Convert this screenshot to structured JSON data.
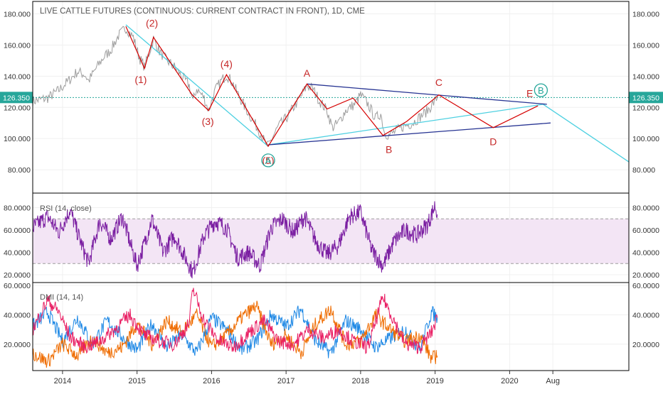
{
  "title": "LIVE CATTLE FUTURES (CONTINUOUS: CURRENT CONTRACT IN FRONT), 1D, CME",
  "current_price": {
    "label": "126.350",
    "value": 126.35,
    "color": "#26a69a"
  },
  "colors": {
    "price": "#9e9e9e",
    "wave": "#d50000",
    "trend_lines": "#283593",
    "projection": "#4dd0e1",
    "rsi": "#7b1fa2",
    "rsi_band": "#f3e5f5",
    "dmi_plus": "#1e88e5",
    "dmi_minus": "#ef6c00",
    "adx": "#e91e63",
    "wave_label": "#c62828",
    "circle_label": "#26a69a"
  },
  "x_axis": {
    "ticks": [
      {
        "label": "2014",
        "value": 2014.0
      },
      {
        "label": "2015",
        "value": 2015.0
      },
      {
        "label": "2016",
        "value": 2016.0
      },
      {
        "label": "2017",
        "value": 2017.0
      },
      {
        "label": "2018",
        "value": 2018.0
      },
      {
        "label": "2019",
        "value": 2019.0
      },
      {
        "label": "2020",
        "value": 2020.0
      },
      {
        "label": "Aug",
        "value": 2020.58
      }
    ],
    "range": [
      2013.6,
      2021.6
    ]
  },
  "panels": {
    "price": {
      "ylim": [
        65,
        188
      ],
      "ticks": [
        {
          "label": "80.000",
          "value": 80
        },
        {
          "label": "100.000",
          "value": 100
        },
        {
          "label": "120.000",
          "value": 120
        },
        {
          "label": "140.000",
          "value": 140
        },
        {
          "label": "160.000",
          "value": 160
        },
        {
          "label": "180.000",
          "value": 180
        }
      ]
    },
    "rsi": {
      "name": "RSI (14, close)",
      "ylim": [
        13,
        93
      ],
      "band": [
        30,
        70
      ],
      "ticks": [
        {
          "label": "20.0000",
          "value": 20
        },
        {
          "label": "40.0000",
          "value": 40
        },
        {
          "label": "60.0000",
          "value": 60
        },
        {
          "label": "80.0000",
          "value": 80
        }
      ]
    },
    "dmi": {
      "name": "DMI (14, 14)",
      "ylim": [
        2,
        62
      ],
      "ticks": [
        {
          "label": "20.0000",
          "value": 20
        },
        {
          "label": "40.0000",
          "value": 40
        },
        {
          "label": "60.0000",
          "value": 60
        }
      ]
    }
  },
  "chart_data": {
    "type": "line",
    "price_path": [
      {
        "x": 2013.6,
        "y": 124
      },
      {
        "x": 2013.8,
        "y": 126
      },
      {
        "x": 2013.95,
        "y": 131
      },
      {
        "x": 2014.1,
        "y": 138
      },
      {
        "x": 2014.2,
        "y": 143
      },
      {
        "x": 2014.3,
        "y": 141
      },
      {
        "x": 2014.35,
        "y": 137
      },
      {
        "x": 2014.45,
        "y": 145
      },
      {
        "x": 2014.55,
        "y": 152
      },
      {
        "x": 2014.65,
        "y": 157
      },
      {
        "x": 2014.75,
        "y": 166
      },
      {
        "x": 2014.85,
        "y": 171
      },
      {
        "x": 2014.95,
        "y": 165
      },
      {
        "x": 2015.03,
        "y": 152
      },
      {
        "x": 2015.1,
        "y": 146
      },
      {
        "x": 2015.17,
        "y": 156
      },
      {
        "x": 2015.22,
        "y": 164
      },
      {
        "x": 2015.3,
        "y": 156
      },
      {
        "x": 2015.4,
        "y": 150
      },
      {
        "x": 2015.5,
        "y": 146
      },
      {
        "x": 2015.6,
        "y": 140
      },
      {
        "x": 2015.7,
        "y": 134
      },
      {
        "x": 2015.75,
        "y": 124
      },
      {
        "x": 2015.8,
        "y": 132
      },
      {
        "x": 2015.9,
        "y": 126
      },
      {
        "x": 2015.96,
        "y": 118
      },
      {
        "x": 2016.05,
        "y": 131
      },
      {
        "x": 2016.13,
        "y": 137
      },
      {
        "x": 2016.2,
        "y": 141
      },
      {
        "x": 2016.28,
        "y": 136
      },
      {
        "x": 2016.36,
        "y": 128
      },
      {
        "x": 2016.45,
        "y": 120
      },
      {
        "x": 2016.55,
        "y": 112
      },
      {
        "x": 2016.65,
        "y": 104
      },
      {
        "x": 2016.72,
        "y": 97
      },
      {
        "x": 2016.76,
        "y": 95
      },
      {
        "x": 2016.82,
        "y": 101
      },
      {
        "x": 2016.9,
        "y": 108
      },
      {
        "x": 2017.0,
        "y": 113
      },
      {
        "x": 2017.1,
        "y": 120
      },
      {
        "x": 2017.2,
        "y": 127
      },
      {
        "x": 2017.28,
        "y": 134
      },
      {
        "x": 2017.36,
        "y": 132
      },
      {
        "x": 2017.45,
        "y": 124
      },
      {
        "x": 2017.55,
        "y": 118
      },
      {
        "x": 2017.62,
        "y": 107
      },
      {
        "x": 2017.7,
        "y": 110
      },
      {
        "x": 2017.8,
        "y": 118
      },
      {
        "x": 2017.92,
        "y": 122
      },
      {
        "x": 2018.0,
        "y": 128
      },
      {
        "x": 2018.1,
        "y": 122
      },
      {
        "x": 2018.2,
        "y": 113
      },
      {
        "x": 2018.27,
        "y": 116
      },
      {
        "x": 2018.32,
        "y": 104
      },
      {
        "x": 2018.38,
        "y": 102
      },
      {
        "x": 2018.48,
        "y": 105
      },
      {
        "x": 2018.58,
        "y": 108
      },
      {
        "x": 2018.7,
        "y": 110
      },
      {
        "x": 2018.8,
        "y": 114
      },
      {
        "x": 2018.9,
        "y": 118
      },
      {
        "x": 2018.98,
        "y": 123
      },
      {
        "x": 2019.03,
        "y": 126.35
      }
    ],
    "wave_path": [
      {
        "x": 2014.85,
        "y": 172
      },
      {
        "x": 2015.1,
        "y": 145
      },
      {
        "x": 2015.22,
        "y": 165
      },
      {
        "x": 2015.74,
        "y": 128
      },
      {
        "x": 2015.96,
        "y": 118
      },
      {
        "x": 2016.2,
        "y": 141
      },
      {
        "x": 2016.76,
        "y": 95
      },
      {
        "x": 2017.28,
        "y": 135
      },
      {
        "x": 2017.55,
        "y": 119
      },
      {
        "x": 2017.9,
        "y": 126
      },
      {
        "x": 2018.3,
        "y": 102
      },
      {
        "x": 2018.62,
        "y": 111
      },
      {
        "x": 2019.05,
        "y": 128
      },
      {
        "x": 2019.78,
        "y": 107
      },
      {
        "x": 2020.38,
        "y": 121
      }
    ],
    "wave_labels": [
      {
        "text": "(1)",
        "x": 2015.05,
        "y": 138
      },
      {
        "text": "(2)",
        "x": 2015.2,
        "y": 174
      },
      {
        "text": "(3)",
        "x": 2015.95,
        "y": 111
      },
      {
        "text": "(4)",
        "x": 2016.2,
        "y": 148
      },
      {
        "text": "(5)",
        "x": 2016.76,
        "y": 86
      },
      {
        "text": "A",
        "x": 2017.28,
        "y": 142
      },
      {
        "text": "B",
        "x": 2018.38,
        "y": 93
      },
      {
        "text": "C",
        "x": 2019.05,
        "y": 136
      },
      {
        "text": "D",
        "x": 2019.78,
        "y": 98
      },
      {
        "text": "E",
        "x": 2020.27,
        "y": 129
      }
    ],
    "circle_labels": [
      {
        "text": "A",
        "x": 2016.76,
        "y": 86
      },
      {
        "text": "B",
        "x": 2020.42,
        "y": 131
      }
    ],
    "trend_lines": [
      [
        {
          "x": 2017.28,
          "y": 135
        },
        {
          "x": 2020.5,
          "y": 122
        }
      ],
      [
        {
          "x": 2016.76,
          "y": 96
        },
        {
          "x": 2020.55,
          "y": 110
        }
      ]
    ],
    "projection_lines": [
      [
        {
          "x": 2014.85,
          "y": 173
        },
        {
          "x": 2016.76,
          "y": 95
        }
      ],
      [
        {
          "x": 2016.76,
          "y": 96
        },
        {
          "x": 2020.45,
          "y": 122
        }
      ],
      [
        {
          "x": 2020.45,
          "y": 122
        },
        {
          "x": 2021.6,
          "y": 85
        }
      ]
    ],
    "rsi_path": [
      {
        "x": 2013.6,
        "y": 62
      },
      {
        "x": 2013.8,
        "y": 72
      },
      {
        "x": 2013.95,
        "y": 58
      },
      {
        "x": 2014.1,
        "y": 78
      },
      {
        "x": 2014.25,
        "y": 48
      },
      {
        "x": 2014.35,
        "y": 30
      },
      {
        "x": 2014.5,
        "y": 68
      },
      {
        "x": 2014.65,
        "y": 52
      },
      {
        "x": 2014.8,
        "y": 72
      },
      {
        "x": 2015.0,
        "y": 28
      },
      {
        "x": 2015.1,
        "y": 48
      },
      {
        "x": 2015.2,
        "y": 70
      },
      {
        "x": 2015.35,
        "y": 40
      },
      {
        "x": 2015.5,
        "y": 55
      },
      {
        "x": 2015.65,
        "y": 35
      },
      {
        "x": 2015.75,
        "y": 22
      },
      {
        "x": 2015.9,
        "y": 55
      },
      {
        "x": 2016.05,
        "y": 68
      },
      {
        "x": 2016.2,
        "y": 62
      },
      {
        "x": 2016.35,
        "y": 35
      },
      {
        "x": 2016.5,
        "y": 40
      },
      {
        "x": 2016.65,
        "y": 28
      },
      {
        "x": 2016.8,
        "y": 62
      },
      {
        "x": 2016.95,
        "y": 70
      },
      {
        "x": 2017.1,
        "y": 58
      },
      {
        "x": 2017.25,
        "y": 72
      },
      {
        "x": 2017.4,
        "y": 50
      },
      {
        "x": 2017.55,
        "y": 38
      },
      {
        "x": 2017.7,
        "y": 46
      },
      {
        "x": 2017.85,
        "y": 72
      },
      {
        "x": 2018.0,
        "y": 76
      },
      {
        "x": 2018.15,
        "y": 42
      },
      {
        "x": 2018.3,
        "y": 28
      },
      {
        "x": 2018.45,
        "y": 50
      },
      {
        "x": 2018.6,
        "y": 60
      },
      {
        "x": 2018.75,
        "y": 55
      },
      {
        "x": 2018.9,
        "y": 65
      },
      {
        "x": 2019.0,
        "y": 82
      },
      {
        "x": 2019.03,
        "y": 74
      }
    ],
    "dmi_series": [
      {
        "key": "plus",
        "values": [
          {
            "x": 2013.6,
            "y": 32
          },
          {
            "x": 2013.8,
            "y": 42
          },
          {
            "x": 2014.0,
            "y": 22
          },
          {
            "x": 2014.2,
            "y": 38
          },
          {
            "x": 2014.4,
            "y": 20
          },
          {
            "x": 2014.6,
            "y": 36
          },
          {
            "x": 2014.8,
            "y": 25
          },
          {
            "x": 2015.0,
            "y": 16
          },
          {
            "x": 2015.2,
            "y": 34
          },
          {
            "x": 2015.4,
            "y": 18
          },
          {
            "x": 2015.6,
            "y": 26
          },
          {
            "x": 2015.8,
            "y": 14
          },
          {
            "x": 2016.0,
            "y": 38
          },
          {
            "x": 2016.2,
            "y": 30
          },
          {
            "x": 2016.4,
            "y": 16
          },
          {
            "x": 2016.6,
            "y": 22
          },
          {
            "x": 2016.8,
            "y": 40
          },
          {
            "x": 2017.0,
            "y": 32
          },
          {
            "x": 2017.2,
            "y": 44
          },
          {
            "x": 2017.4,
            "y": 22
          },
          {
            "x": 2017.6,
            "y": 14
          },
          {
            "x": 2017.8,
            "y": 36
          },
          {
            "x": 2018.0,
            "y": 30
          },
          {
            "x": 2018.2,
            "y": 18
          },
          {
            "x": 2018.4,
            "y": 24
          },
          {
            "x": 2018.6,
            "y": 30
          },
          {
            "x": 2018.8,
            "y": 16
          },
          {
            "x": 2018.95,
            "y": 42
          },
          {
            "x": 2019.03,
            "y": 38
          }
        ]
      },
      {
        "key": "minus",
        "values": [
          {
            "x": 2013.6,
            "y": 14
          },
          {
            "x": 2013.8,
            "y": 8
          },
          {
            "x": 2014.0,
            "y": 20
          },
          {
            "x": 2014.2,
            "y": 12
          },
          {
            "x": 2014.4,
            "y": 24
          },
          {
            "x": 2014.6,
            "y": 14
          },
          {
            "x": 2014.8,
            "y": 18
          },
          {
            "x": 2015.0,
            "y": 34
          },
          {
            "x": 2015.2,
            "y": 20
          },
          {
            "x": 2015.4,
            "y": 36
          },
          {
            "x": 2015.6,
            "y": 28
          },
          {
            "x": 2015.8,
            "y": 40
          },
          {
            "x": 2016.0,
            "y": 18
          },
          {
            "x": 2016.2,
            "y": 26
          },
          {
            "x": 2016.4,
            "y": 38
          },
          {
            "x": 2016.6,
            "y": 46
          },
          {
            "x": 2016.8,
            "y": 20
          },
          {
            "x": 2017.0,
            "y": 26
          },
          {
            "x": 2017.2,
            "y": 14
          },
          {
            "x": 2017.4,
            "y": 34
          },
          {
            "x": 2017.6,
            "y": 44
          },
          {
            "x": 2017.8,
            "y": 20
          },
          {
            "x": 2018.0,
            "y": 22
          },
          {
            "x": 2018.2,
            "y": 40
          },
          {
            "x": 2018.4,
            "y": 30
          },
          {
            "x": 2018.6,
            "y": 22
          },
          {
            "x": 2018.8,
            "y": 26
          },
          {
            "x": 2018.95,
            "y": 10
          },
          {
            "x": 2019.03,
            "y": 12
          }
        ]
      },
      {
        "key": "adx",
        "values": [
          {
            "x": 2013.6,
            "y": 30
          },
          {
            "x": 2013.8,
            "y": 50
          },
          {
            "x": 2013.95,
            "y": 42
          },
          {
            "x": 2014.1,
            "y": 25
          },
          {
            "x": 2014.3,
            "y": 18
          },
          {
            "x": 2014.5,
            "y": 22
          },
          {
            "x": 2014.7,
            "y": 30
          },
          {
            "x": 2014.9,
            "y": 40
          },
          {
            "x": 2015.1,
            "y": 26
          },
          {
            "x": 2015.3,
            "y": 22
          },
          {
            "x": 2015.5,
            "y": 20
          },
          {
            "x": 2015.7,
            "y": 34
          },
          {
            "x": 2015.75,
            "y": 58
          },
          {
            "x": 2015.9,
            "y": 36
          },
          {
            "x": 2016.1,
            "y": 22
          },
          {
            "x": 2016.3,
            "y": 18
          },
          {
            "x": 2016.5,
            "y": 28
          },
          {
            "x": 2016.7,
            "y": 36
          },
          {
            "x": 2016.9,
            "y": 22
          },
          {
            "x": 2017.1,
            "y": 20
          },
          {
            "x": 2017.3,
            "y": 30
          },
          {
            "x": 2017.5,
            "y": 24
          },
          {
            "x": 2017.7,
            "y": 30
          },
          {
            "x": 2017.9,
            "y": 22
          },
          {
            "x": 2018.1,
            "y": 18
          },
          {
            "x": 2018.3,
            "y": 52
          },
          {
            "x": 2018.45,
            "y": 36
          },
          {
            "x": 2018.6,
            "y": 20
          },
          {
            "x": 2018.8,
            "y": 18
          },
          {
            "x": 2018.95,
            "y": 28
          },
          {
            "x": 2019.03,
            "y": 38
          }
        ]
      }
    ]
  }
}
